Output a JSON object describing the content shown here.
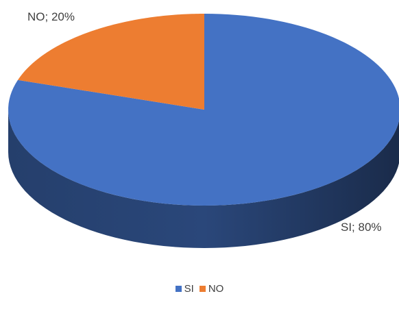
{
  "chart_data": {
    "type": "pie",
    "style": "3d",
    "categories": [
      "SI",
      "NO"
    ],
    "values": [
      80,
      20
    ],
    "unit": "%",
    "colors": [
      "#4472C4",
      "#ED7D31"
    ],
    "data_labels": [
      "SI; 80%",
      "NO; 20%"
    ],
    "legend": {
      "placement": "bottom",
      "entries": [
        "SI",
        "NO"
      ]
    }
  }
}
